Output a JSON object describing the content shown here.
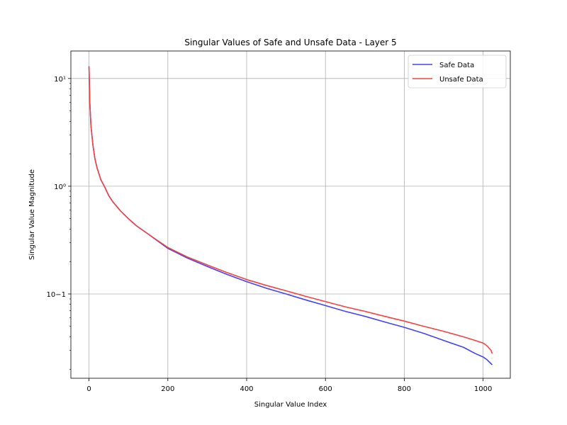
{
  "chart_data": {
    "type": "line",
    "title": "Singular Values of Safe and Unsafe Data - Layer 5",
    "xlabel": "Singular Value Index",
    "ylabel": "Singular Value Magnitude",
    "xlim": [
      -46,
      1069
    ],
    "ylim": [
      0.0165,
      18
    ],
    "yscale": "log",
    "grid": true,
    "legend_position": "top-right",
    "x_ticks": [
      0,
      200,
      400,
      600,
      800,
      1000
    ],
    "x_tick_labels": [
      "0",
      "200",
      "400",
      "600",
      "800",
      "1000"
    ],
    "y_ticks": [
      0.1,
      1,
      10
    ],
    "y_tick_labels": [
      "10−1",
      "10⁰",
      "10¹"
    ],
    "series": [
      {
        "name": "Safe Data",
        "color": "#4343f5",
        "points": [
          [
            0,
            13.0
          ],
          [
            2,
            6.0
          ],
          [
            5,
            3.6
          ],
          [
            10,
            2.4
          ],
          [
            15,
            1.8
          ],
          [
            20,
            1.5
          ],
          [
            30,
            1.15
          ],
          [
            40,
            0.98
          ],
          [
            50,
            0.82
          ],
          [
            60,
            0.72
          ],
          [
            80,
            0.59
          ],
          [
            100,
            0.5
          ],
          [
            120,
            0.43
          ],
          [
            150,
            0.36
          ],
          [
            200,
            0.265
          ],
          [
            250,
            0.215
          ],
          [
            300,
            0.18
          ],
          [
            350,
            0.152
          ],
          [
            400,
            0.13
          ],
          [
            450,
            0.113
          ],
          [
            500,
            0.1
          ],
          [
            550,
            0.088
          ],
          [
            600,
            0.078
          ],
          [
            650,
            0.069
          ],
          [
            700,
            0.062
          ],
          [
            750,
            0.055
          ],
          [
            800,
            0.049
          ],
          [
            850,
            0.043
          ],
          [
            900,
            0.037
          ],
          [
            950,
            0.032
          ],
          [
            980,
            0.028
          ],
          [
            1000,
            0.026
          ],
          [
            1010,
            0.0245
          ],
          [
            1023,
            0.022
          ]
        ]
      },
      {
        "name": "Unsafe Data",
        "color": "#f24343",
        "points": [
          [
            0,
            13.0
          ],
          [
            2,
            6.0
          ],
          [
            5,
            3.6
          ],
          [
            10,
            2.4
          ],
          [
            15,
            1.8
          ],
          [
            20,
            1.5
          ],
          [
            30,
            1.15
          ],
          [
            40,
            0.98
          ],
          [
            50,
            0.82
          ],
          [
            60,
            0.72
          ],
          [
            80,
            0.59
          ],
          [
            100,
            0.5
          ],
          [
            120,
            0.43
          ],
          [
            150,
            0.36
          ],
          [
            200,
            0.27
          ],
          [
            250,
            0.22
          ],
          [
            300,
            0.186
          ],
          [
            350,
            0.158
          ],
          [
            400,
            0.136
          ],
          [
            450,
            0.12
          ],
          [
            500,
            0.107
          ],
          [
            550,
            0.095
          ],
          [
            600,
            0.085
          ],
          [
            650,
            0.076
          ],
          [
            700,
            0.069
          ],
          [
            750,
            0.062
          ],
          [
            800,
            0.056
          ],
          [
            850,
            0.05
          ],
          [
            900,
            0.045
          ],
          [
            950,
            0.04
          ],
          [
            980,
            0.037
          ],
          [
            1000,
            0.035
          ],
          [
            1010,
            0.033
          ],
          [
            1020,
            0.03
          ],
          [
            1023,
            0.028
          ]
        ]
      }
    ]
  }
}
